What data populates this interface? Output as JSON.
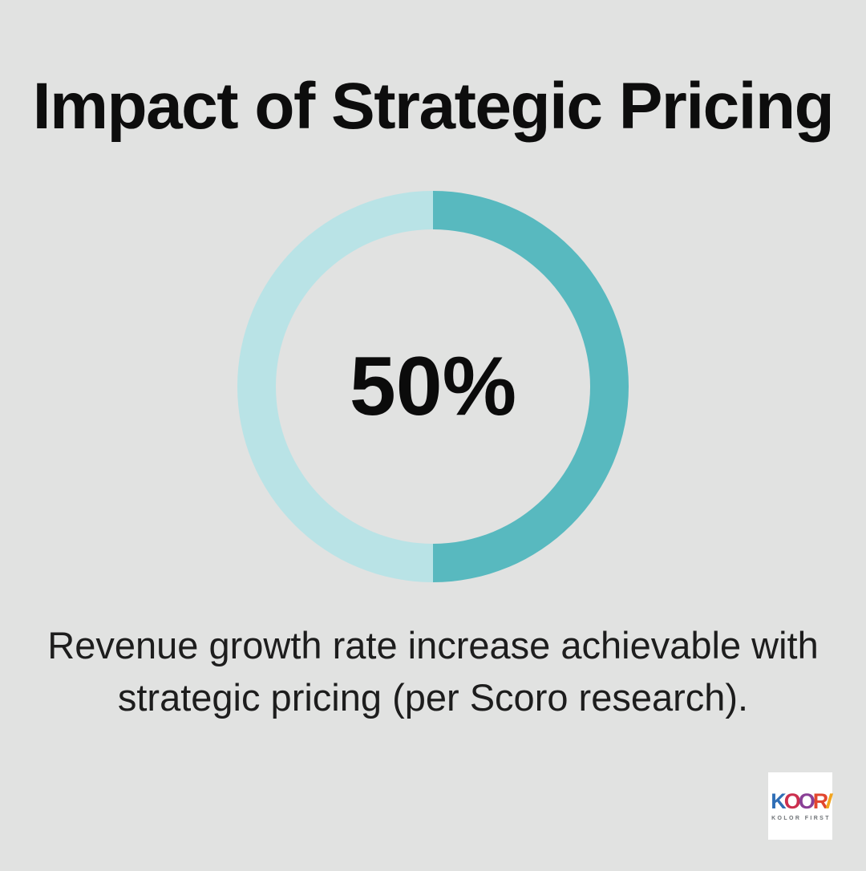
{
  "page": {
    "background_color": "#e1e2e1",
    "text_color": "#0d0d0d"
  },
  "title": "Impact of Strategic Pricing",
  "chart_data": {
    "type": "pie",
    "subtype": "donut",
    "title": "Impact of Strategic Pricing",
    "categories": [
      "highlighted share",
      "remainder"
    ],
    "values": [
      50,
      50
    ],
    "colors": [
      "#58b9bf",
      "#b9e3e6"
    ],
    "center_label": "50%",
    "start_angle_deg": 0,
    "direction": "clockwise",
    "donut_hole_ratio": 0.8,
    "legend_position": "none"
  },
  "caption": {
    "lines": [
      "Revenue growth rate increase achievable with",
      "strategic pricing (per Scoro research)."
    ]
  },
  "logo": {
    "tagline": "KOLOR FIRST",
    "letters": [
      {
        "char": "K",
        "color": "#2f6eb6"
      },
      {
        "char": "O",
        "color": "#cc2f4e"
      },
      {
        "char": "O",
        "color": "#8a3f96"
      },
      {
        "char": "R",
        "color": "#e2462e"
      },
      {
        "char": "I",
        "color": "#f2a51f"
      }
    ]
  }
}
